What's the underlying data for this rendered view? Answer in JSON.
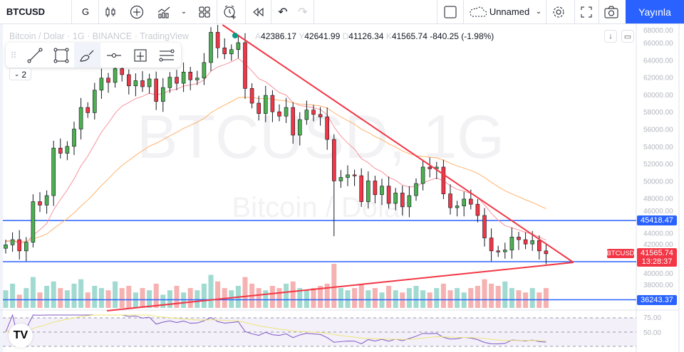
{
  "toolbar": {
    "symbol": "BTCUSD",
    "interval": "G",
    "layout_name": "Unnamed",
    "publish_label": "Yayınla",
    "icons": [
      "candles-icon",
      "add-symbol-icon",
      "indicators-icon",
      "chevron-down-icon",
      "layout-grid-icon",
      "alert-icon",
      "replay-icon",
      "undo-icon",
      "redo-icon",
      "square-icon",
      "cloud-icon",
      "chevron-down-icon",
      "gear-icon",
      "fullscreen-icon",
      "camera-icon"
    ]
  },
  "legend": {
    "title": "Bitcoin / Dolar · 1G · BINANCE · TradingView",
    "open_prefix": "A",
    "open": "42386.17",
    "high_prefix": "Y",
    "high": "42641.99",
    "low_prefix": "D",
    "low": "41126.34",
    "close_prefix": "K",
    "close": "41565.74",
    "change": "-840.25 (-1.98%)"
  },
  "drawing_toolbar": {
    "tools": [
      "trend-line-icon",
      "rectangle-icon",
      "brush-icon",
      "horizontal-ray-icon",
      "price-range-icon",
      "parallel-channel-icon"
    ],
    "collapsed_count": "2"
  },
  "watermark": {
    "line1": "BTCUSD, 1G",
    "line2": "Bitcoin / Dolar"
  },
  "price_labels": {
    "symbol_tag": "BTCUSD",
    "last_price": "41565.74",
    "countdown": "13:28:37",
    "level_upper": "45418.47",
    "level_lower": "36243.37"
  },
  "colors": {
    "up": "#4caf50",
    "down": "#f23645",
    "vol_up": "#8fd4c8",
    "vol_down": "#f5a3a3",
    "accent": "#2962ff",
    "trend": "#f23645",
    "ma_fast": "#f7929b",
    "ma_slow": "#ffb26b",
    "rsi": "#7e57c2",
    "rsi_ma": "#ede57a"
  },
  "chart_data": {
    "type": "candlestick",
    "title": "BTCUSD, 1G",
    "y_ticks": [
      "68000.00",
      "66000.00",
      "64000.00",
      "62000.00",
      "60000.00",
      "58000.00",
      "56000.00",
      "54000.00",
      "52000.00",
      "50000.00",
      "48000.00",
      "46000.00",
      "44000.00",
      "42000.00",
      "40000.00",
      "38000.00"
    ],
    "ylim": [
      35000,
      68500
    ],
    "closes": [
      42.6,
      43.2,
      41.9,
      42.9,
      47.6,
      47.2,
      48.3,
      53.8,
      53.2,
      54.0,
      56.0,
      58.5,
      57.9,
      60.5,
      61.9,
      61.4,
      63.0,
      62.3,
      61.0,
      61.6,
      60.9,
      61.8,
      59.2,
      60.8,
      62.0,
      61.3,
      62.6,
      61.7,
      61.9,
      63.7,
      67.2,
      65.4,
      64.7,
      65.2,
      66.0,
      60.7,
      59.0,
      57.8,
      59.9,
      58.0,
      57.5,
      58.5,
      55.3,
      57.1,
      58.2,
      57.7,
      57.4,
      54.8,
      50.0,
      50.4,
      50.7,
      50.6,
      47.6,
      50.0,
      48.4,
      49.4,
      47.4,
      48.6,
      47.0,
      48.3,
      49.7,
      51.6,
      51.4,
      51.6,
      48.5,
      46.9,
      47.1,
      47.9,
      47.3,
      46.0,
      43.4,
      41.9,
      41.8,
      42.0,
      43.5,
      43.2,
      42.7,
      43.1,
      41.9,
      41.57
    ],
    "close_units": "thousand USD",
    "volume_relative": [
      40,
      55,
      30,
      45,
      70,
      35,
      50,
      60,
      45,
      40,
      55,
      65,
      35,
      50,
      45,
      40,
      60,
      45,
      50,
      35,
      45,
      40,
      55,
      30,
      40,
      50,
      35,
      45,
      40,
      55,
      75,
      60,
      45,
      40,
      50,
      70,
      55,
      45,
      40,
      50,
      45,
      55,
      60,
      45,
      40,
      45,
      50,
      55,
      100,
      45,
      40,
      45,
      55,
      40,
      45,
      35,
      50,
      40,
      35,
      45,
      50,
      40,
      35,
      45,
      55,
      40,
      45,
      35,
      45,
      50,
      65,
      55,
      50,
      60,
      45,
      40,
      35,
      45,
      35,
      45
    ],
    "horizontal_levels": [
      45418.47,
      40650,
      36243.37
    ],
    "trendlines": [
      {
        "name": "descending-resistance",
        "from": [
          31.7,
          68058
        ],
        "to": [
          83,
          40568
        ]
      },
      {
        "name": "ascending-support",
        "from": [
          14.8,
          34975
        ],
        "to": [
          83,
          40568
        ]
      }
    ],
    "rsi": {
      "levels": [
        "75.00",
        "50.00"
      ],
      "period": 14
    }
  }
}
